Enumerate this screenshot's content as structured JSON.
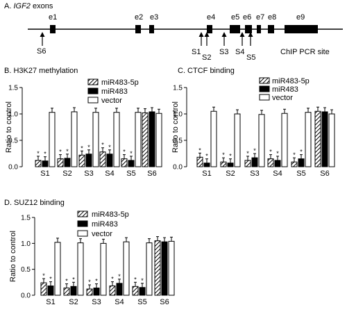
{
  "gene_map": {
    "title_prefix": "A.",
    "title_gene": "IGF2",
    "title_suffix": "exons",
    "exons": [
      {
        "label": "e1"
      },
      {
        "label": "e2"
      },
      {
        "label": "e3"
      },
      {
        "label": "e4"
      },
      {
        "label": "e5"
      },
      {
        "label": "e6"
      },
      {
        "label": "e7"
      },
      {
        "label": "e8"
      },
      {
        "label": "e9"
      }
    ],
    "sites": [
      {
        "label": "S6"
      },
      {
        "label": "S1"
      },
      {
        "label": "S2"
      },
      {
        "label": "S3"
      },
      {
        "label": "S4"
      },
      {
        "label": "S5"
      }
    ],
    "site_caption": "ChIP PCR site"
  },
  "chart_data": [
    {
      "type": "bar",
      "panel": "B",
      "title": "B. H3K27 methylation",
      "ylabel": "Ratio to control",
      "xlabel": "",
      "ylim": [
        0,
        1.5
      ],
      "yticks": [
        "0.0",
        "0.5",
        "1.0",
        "1.5"
      ],
      "categories": [
        "S1",
        "S2",
        "S3",
        "S4",
        "S5",
        "S6"
      ],
      "legend_position": "top-right",
      "series": [
        {
          "name": "miR483-5p",
          "values": [
            0.12,
            0.15,
            0.22,
            0.28,
            0.15,
            1.02
          ]
        },
        {
          "name": "miR483",
          "values": [
            0.11,
            0.16,
            0.24,
            0.24,
            0.12,
            1.04
          ]
        },
        {
          "name": "vector",
          "values": [
            1.03,
            1.04,
            1.03,
            1.03,
            1.03,
            1.01
          ]
        }
      ],
      "significance_marker": "*"
    },
    {
      "type": "bar",
      "panel": "C",
      "title": "C. CTCF binding",
      "ylabel": "Ratio to control",
      "xlabel": "",
      "ylim": [
        0,
        1.5
      ],
      "yticks": [
        "0.0",
        "0.5",
        "1.0",
        "1.5"
      ],
      "categories": [
        "S1",
        "S2",
        "S3",
        "S4",
        "S5",
        "S6"
      ],
      "legend_position": "top-right",
      "series": [
        {
          "name": "miR483-5p",
          "values": [
            0.18,
            0.09,
            0.12,
            0.15,
            0.09,
            1.05
          ]
        },
        {
          "name": "miR483",
          "values": [
            0.07,
            0.07,
            0.17,
            0.12,
            0.15,
            1.04
          ]
        },
        {
          "name": "vector",
          "values": [
            1.05,
            1.0,
            0.99,
            1.01,
            1.03,
            1.0
          ]
        }
      ],
      "significance_marker": "*"
    },
    {
      "type": "bar",
      "panel": "D",
      "title": "D. SUZ12 binding",
      "ylabel": "Ratio to control",
      "xlabel": "",
      "ylim": [
        0,
        1.5
      ],
      "yticks": [
        "0.0",
        "0.5",
        "1.0",
        "1.5"
      ],
      "categories": [
        "S1",
        "S2",
        "S3",
        "S4",
        "S5",
        "S6"
      ],
      "legend_position": "top-right",
      "series": [
        {
          "name": "miR483-5p",
          "values": [
            0.24,
            0.14,
            0.12,
            0.18,
            0.17,
            1.05
          ]
        },
        {
          "name": "miR483",
          "values": [
            0.18,
            0.17,
            0.14,
            0.23,
            0.15,
            1.03
          ]
        },
        {
          "name": "vector",
          "values": [
            1.02,
            1.01,
            1.0,
            1.03,
            1.01,
            1.04
          ]
        }
      ],
      "significance_marker": "*"
    }
  ]
}
